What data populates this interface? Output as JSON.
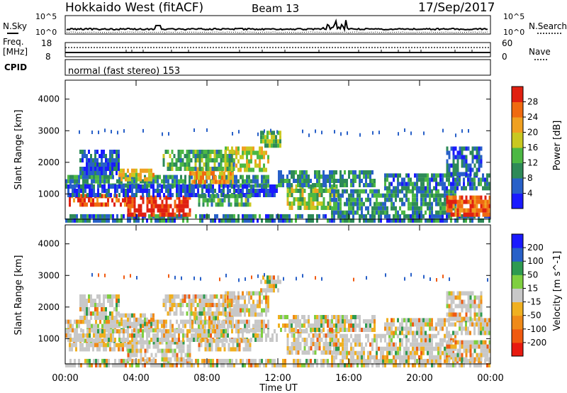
{
  "header": {
    "radar": "Hokkaido West (fitACF)",
    "beam": "Beam 13",
    "date": "17/Sep/2017"
  },
  "noise_panel": {
    "left_label": "N.Sky",
    "right_label": "N.Search",
    "tick_top": "10^5",
    "tick_bottom": "10^0",
    "right_tick_top": "10^5",
    "right_tick_bottom": "10^0"
  },
  "freq_panel": {
    "left_label_1": "Freq.",
    "left_label_2": "[MHz]",
    "left_tick_top": "18",
    "left_tick_bottom": "8",
    "right_label": "Nave",
    "right_tick_top": "60",
    "right_tick_bottom": "0",
    "cpid_label": "CPID",
    "cpid_value": "normal (fast stereo) 153"
  },
  "colors": {
    "power": [
      "#1a1aff",
      "#2860c8",
      "#2e8a58",
      "#4cb844",
      "#c9c820",
      "#f0a020",
      "#f06a10",
      "#e02010"
    ],
    "velocity": [
      "#e81a10",
      "#f05a10",
      "#f08a18",
      "#f0b020",
      "#c8c8c8",
      "#7fcf40",
      "#2e9a50",
      "#2860c8",
      "#1a1aff"
    ]
  },
  "chart_data": [
    {
      "type": "heatmap",
      "title": "Power",
      "ylabel": "Slant Range [km]",
      "ylim": [
        200,
        4600
      ],
      "yticks": [
        "1000",
        "2000",
        "3000",
        "4000"
      ],
      "colorbar": {
        "label": "Power [dB]",
        "ticks": [
          "4",
          "8",
          "12",
          "16",
          "20",
          "24",
          "28"
        ],
        "range": [
          0,
          32
        ]
      }
    },
    {
      "type": "heatmap",
      "title": "Velocity",
      "ylabel": "Slant Range [km]",
      "ylim": [
        200,
        4600
      ],
      "yticks": [
        "1000",
        "2000",
        "3000",
        "4000"
      ],
      "xlabel": "Time UT",
      "xticks": [
        "00:00",
        "04:00",
        "08:00",
        "12:00",
        "16:00",
        "20:00",
        "00:00"
      ],
      "colorbar": {
        "label": "Velocity [m s^-1]",
        "ticks": [
          "200",
          "100",
          "50",
          "15",
          "-15",
          "-50",
          "-100",
          "-200"
        ]
      }
    }
  ]
}
